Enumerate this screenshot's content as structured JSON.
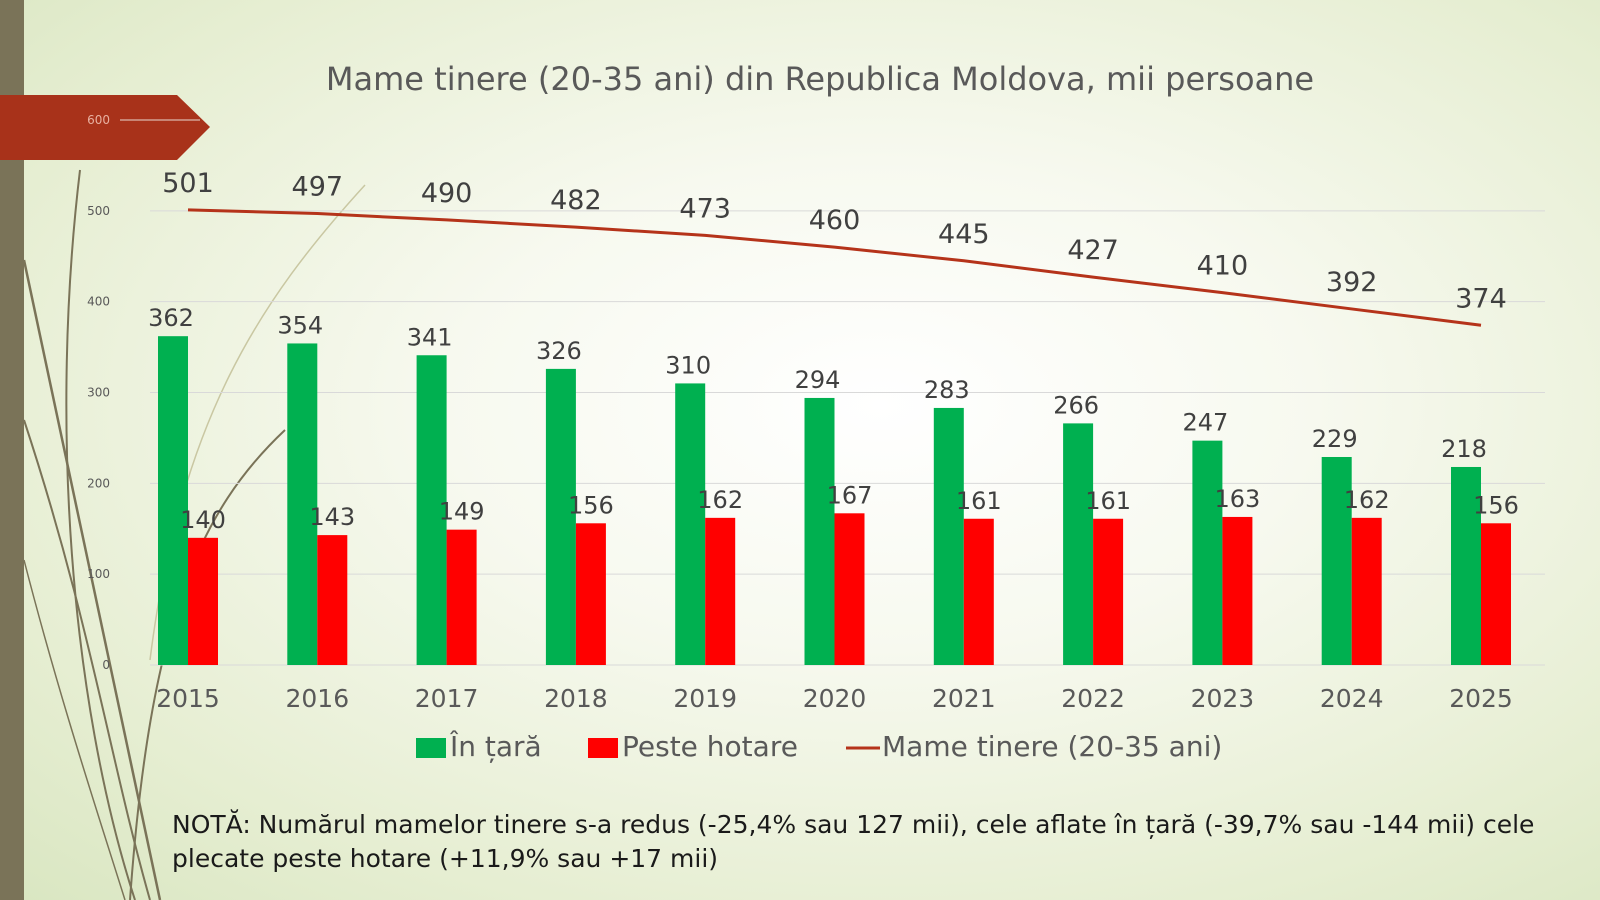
{
  "colors": {
    "accent_bar": "#7a7358",
    "arrow_tab": "#a8321a",
    "in_tara": "#00b050",
    "peste_hotare": "#ff0000",
    "mame_tinere": "#b5331a"
  },
  "note": "NOTĂ: Numărul mamelor tinere s-a redus (-25,4% sau 127 mii), cele aflate în țară (-39,7% sau -144 mii) cele plecate peste hotare (+11,9% sau +17 mii)",
  "chart_data": {
    "type": "bar",
    "title": "Mame tinere (20-35 ani) din Republica Moldova, mii persoane",
    "categories": [
      "2015",
      "2016",
      "2017",
      "2018",
      "2019",
      "2020",
      "2021",
      "2022",
      "2023",
      "2024",
      "2025"
    ],
    "series": [
      {
        "name": "În țară",
        "type": "bar",
        "values": [
          362,
          354,
          341,
          326,
          310,
          294,
          283,
          266,
          247,
          229,
          218
        ]
      },
      {
        "name": "Peste hotare",
        "type": "bar",
        "values": [
          140,
          143,
          149,
          156,
          162,
          167,
          161,
          161,
          163,
          162,
          156
        ]
      },
      {
        "name": "Mame tinere (20-35 ani)",
        "type": "line",
        "values": [
          501,
          497,
          490,
          482,
          473,
          460,
          445,
          427,
          410,
          392,
          374
        ]
      }
    ],
    "ylim": [
      0,
      600
    ],
    "yticks": [
      "0",
      "100",
      "200",
      "300",
      "400",
      "500",
      "600"
    ],
    "grid": true,
    "legend": "bottom"
  }
}
